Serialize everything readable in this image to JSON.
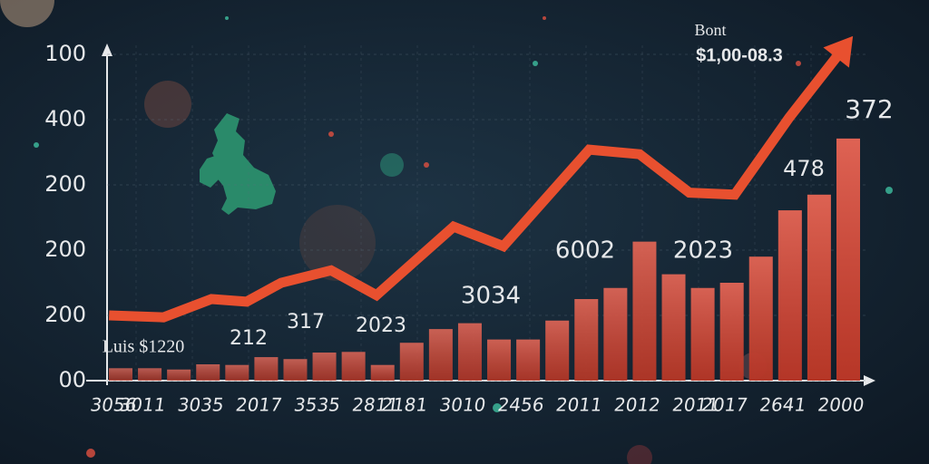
{
  "chart_data": {
    "type": "bar",
    "categories": [
      "3056",
      "3011",
      null,
      "3035",
      null,
      "2017",
      null,
      "3535",
      null,
      "2811",
      "2181",
      null,
      "3010",
      null,
      "2456",
      null,
      "2011",
      null,
      "2012",
      null,
      "2011",
      "2017",
      null,
      "2641",
      null,
      "2000"
    ],
    "values": [
      0.19,
      0.19,
      0.17,
      0.25,
      0.24,
      0.36,
      0.33,
      0.43,
      0.44,
      0.24,
      0.58,
      0.79,
      0.88,
      0.63,
      0.63,
      0.92,
      1.25,
      1.42,
      2.13,
      1.63,
      1.42,
      1.5,
      1.9,
      2.61,
      2.85,
      3.71
    ],
    "color": "#d9412e",
    "line": {
      "color": "#e8502f",
      "x": [
        -0.4,
        1.47,
        3.12,
        4.33,
        5.52,
        7.23,
        8.79,
        11.44,
        13.15,
        16.1,
        17.83,
        19.54,
        21.1,
        22.97,
        25.16
      ],
      "values": [
        1.0,
        0.97,
        1.25,
        1.21,
        1.5,
        1.69,
        1.31,
        2.36,
        2.06,
        3.54,
        3.47,
        2.88,
        2.85,
        4.03,
        5.28
      ]
    },
    "ylim": [
      0,
      5.2
    ],
    "yticks": [
      {
        "value": 0,
        "label": "00"
      },
      {
        "value": 1,
        "label": "200"
      },
      {
        "value": 2,
        "label": "200"
      },
      {
        "value": 3,
        "label": "200"
      },
      {
        "value": 4,
        "label": "400"
      },
      {
        "value": 5,
        "label": "100"
      }
    ],
    "grid": true,
    "annotations": [
      "Bont",
      "$1,00-08.3",
      "372",
      "478",
      "6002",
      "2023",
      "3034",
      "317",
      "212",
      "2023",
      "Luis $1220"
    ]
  }
}
